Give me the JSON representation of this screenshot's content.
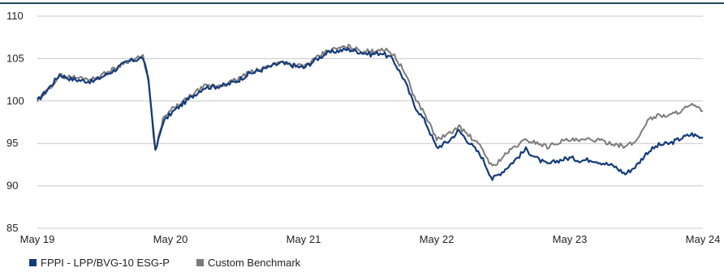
{
  "chart_data": {
    "type": "line",
    "x_ticks": [
      "May 19",
      "May 20",
      "May 21",
      "May 22",
      "May 23",
      "May 24"
    ],
    "x_range": [
      "2019-05",
      "2024-05"
    ],
    "ylim": [
      85,
      110
    ],
    "y_ticks": [
      85,
      90,
      95,
      100,
      105,
      110
    ],
    "grid": true,
    "legend_placement": "bottom-left",
    "series": [
      {
        "name": "FPPI - LPP/BVG-10 ESG-P",
        "color": "#123a7a",
        "points": [
          [
            "2019-05",
            100.0
          ],
          [
            "2019-06",
            101.5
          ],
          [
            "2019-07",
            103.1
          ],
          [
            "2019-08",
            102.6
          ],
          [
            "2019-09",
            102.4
          ],
          [
            "2019-10",
            102.3
          ],
          [
            "2019-11",
            103.0
          ],
          [
            "2019-12",
            103.7
          ],
          [
            "2020-01",
            104.6
          ],
          [
            "2020-02-15",
            105.1
          ],
          [
            "2020-03-01",
            102.5
          ],
          [
            "2020-03-20",
            94.0
          ],
          [
            "2020-04-10",
            97.5
          ],
          [
            "2020-05",
            98.5
          ],
          [
            "2020-06",
            99.6
          ],
          [
            "2020-07",
            100.6
          ],
          [
            "2020-08",
            101.6
          ],
          [
            "2020-09",
            101.7
          ],
          [
            "2020-10",
            101.9
          ],
          [
            "2020-11",
            102.4
          ],
          [
            "2020-12",
            103.2
          ],
          [
            "2021-01",
            103.6
          ],
          [
            "2021-02",
            104.1
          ],
          [
            "2021-03",
            104.5
          ],
          [
            "2021-04",
            104.2
          ],
          [
            "2021-05",
            103.9
          ],
          [
            "2021-06",
            104.8
          ],
          [
            "2021-07",
            105.6
          ],
          [
            "2021-08",
            105.9
          ],
          [
            "2021-09",
            106.1
          ],
          [
            "2021-10",
            105.8
          ],
          [
            "2021-11",
            105.5
          ],
          [
            "2021-12",
            105.7
          ],
          [
            "2022-01",
            104.9
          ],
          [
            "2022-02",
            102.5
          ],
          [
            "2022-03",
            99.5
          ],
          [
            "2022-04",
            97.5
          ],
          [
            "2022-05",
            94.5
          ],
          [
            "2022-06",
            95.2
          ],
          [
            "2022-07",
            96.5
          ],
          [
            "2022-08",
            95.0
          ],
          [
            "2022-09",
            93.5
          ],
          [
            "2022-10",
            90.8
          ],
          [
            "2022-11",
            91.8
          ],
          [
            "2022-12",
            93.0
          ],
          [
            "2023-01",
            94.3
          ],
          [
            "2023-02",
            93.2
          ],
          [
            "2023-03",
            92.5
          ],
          [
            "2023-04",
            93.0
          ],
          [
            "2023-05",
            93.3
          ],
          [
            "2023-06",
            93.0
          ],
          [
            "2023-07",
            93.1
          ],
          [
            "2023-08",
            92.7
          ],
          [
            "2023-09",
            92.3
          ],
          [
            "2023-10",
            91.4
          ],
          [
            "2023-11",
            92.4
          ],
          [
            "2023-12",
            94.0
          ],
          [
            "2024-01",
            94.8
          ],
          [
            "2024-02",
            95.0
          ],
          [
            "2024-03",
            95.6
          ],
          [
            "2024-04",
            96.1
          ],
          [
            "2024-05",
            95.6
          ]
        ]
      },
      {
        "name": "Custom Benchmark",
        "color": "#7b7b7b",
        "points": [
          [
            "2019-05",
            100.0
          ],
          [
            "2019-06",
            101.4
          ],
          [
            "2019-07",
            103.0
          ],
          [
            "2019-08",
            102.8
          ],
          [
            "2019-09",
            102.7
          ],
          [
            "2019-10",
            102.6
          ],
          [
            "2019-11",
            103.2
          ],
          [
            "2019-12",
            103.9
          ],
          [
            "2020-01",
            104.7
          ],
          [
            "2020-02-15",
            105.2
          ],
          [
            "2020-03-01",
            102.6
          ],
          [
            "2020-03-20",
            94.2
          ],
          [
            "2020-04-10",
            97.8
          ],
          [
            "2020-05",
            98.9
          ],
          [
            "2020-06",
            99.8
          ],
          [
            "2020-07",
            100.8
          ],
          [
            "2020-08",
            101.7
          ],
          [
            "2020-09",
            101.8
          ],
          [
            "2020-10",
            102.0
          ],
          [
            "2020-11",
            102.6
          ],
          [
            "2020-12",
            103.3
          ],
          [
            "2021-01",
            103.7
          ],
          [
            "2021-02",
            104.3
          ],
          [
            "2021-03",
            104.6
          ],
          [
            "2021-04",
            104.3
          ],
          [
            "2021-05",
            104.1
          ],
          [
            "2021-06",
            104.9
          ],
          [
            "2021-07",
            105.8
          ],
          [
            "2021-08",
            106.2
          ],
          [
            "2021-09",
            106.4
          ],
          [
            "2021-10",
            106.0
          ],
          [
            "2021-11",
            105.8
          ],
          [
            "2021-12",
            106.2
          ],
          [
            "2022-01",
            105.6
          ],
          [
            "2022-02",
            103.5
          ],
          [
            "2022-03",
            100.5
          ],
          [
            "2022-04",
            98.3
          ],
          [
            "2022-05",
            95.5
          ],
          [
            "2022-06",
            96.0
          ],
          [
            "2022-07",
            97.0
          ],
          [
            "2022-08",
            95.8
          ],
          [
            "2022-09",
            94.5
          ],
          [
            "2022-10",
            92.2
          ],
          [
            "2022-11",
            93.5
          ],
          [
            "2022-12",
            94.6
          ],
          [
            "2023-01",
            95.4
          ],
          [
            "2023-02",
            95.1
          ],
          [
            "2023-03",
            94.6
          ],
          [
            "2023-04",
            95.2
          ],
          [
            "2023-05",
            95.4
          ],
          [
            "2023-06",
            95.3
          ],
          [
            "2023-07",
            95.5
          ],
          [
            "2023-08",
            95.2
          ],
          [
            "2023-09",
            95.0
          ],
          [
            "2023-10",
            94.6
          ],
          [
            "2023-11",
            95.3
          ],
          [
            "2023-12",
            97.8
          ],
          [
            "2024-01",
            98.3
          ],
          [
            "2024-02",
            98.3
          ],
          [
            "2024-03",
            98.9
          ],
          [
            "2024-04",
            99.5
          ],
          [
            "2024-05",
            98.8
          ]
        ]
      }
    ]
  }
}
